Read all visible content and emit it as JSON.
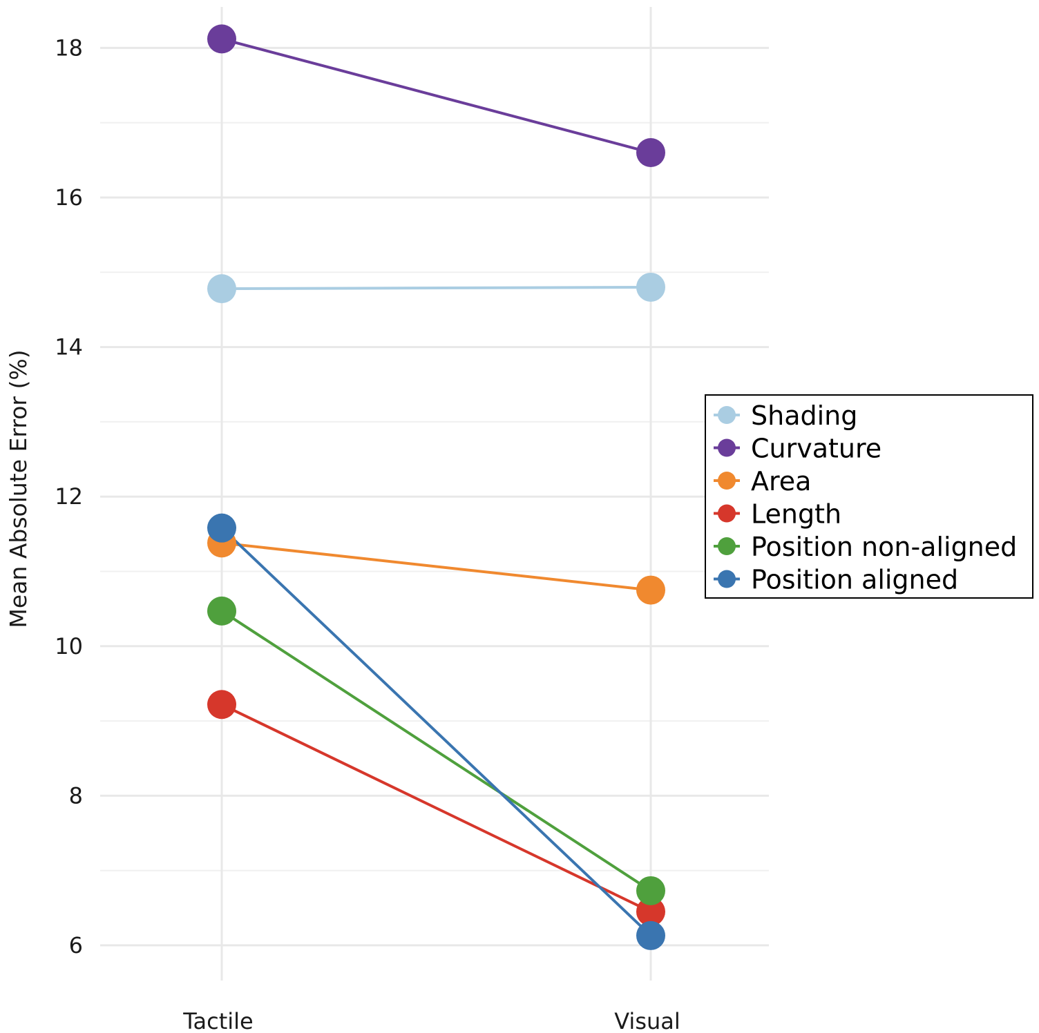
{
  "chart_data": {
    "type": "line",
    "title": "",
    "xlabel": "",
    "ylabel": "Mean Absolute Error (%)",
    "categories": [
      "Tactile",
      "Visual"
    ],
    "ylim": [
      5.55,
      18.55
    ],
    "yticks": [
      6,
      8,
      10,
      12,
      14,
      16,
      18
    ],
    "grid": true,
    "legend_position": "right",
    "series": [
      {
        "name": "Shading",
        "color": "#aacde2",
        "values": [
          14.78,
          14.8
        ]
      },
      {
        "name": "Curvature",
        "color": "#6a3d9a",
        "values": [
          18.12,
          16.6
        ]
      },
      {
        "name": "Area",
        "color": "#f0892f",
        "values": [
          11.38,
          10.75
        ]
      },
      {
        "name": "Length",
        "color": "#d6372b",
        "values": [
          9.22,
          6.45
        ]
      },
      {
        "name": "Position non-aligned",
        "color": "#4fa03d",
        "values": [
          10.47,
          6.73
        ]
      },
      {
        "name": "Position aligned",
        "color": "#3a75b0",
        "values": [
          11.58,
          6.13
        ]
      }
    ]
  }
}
